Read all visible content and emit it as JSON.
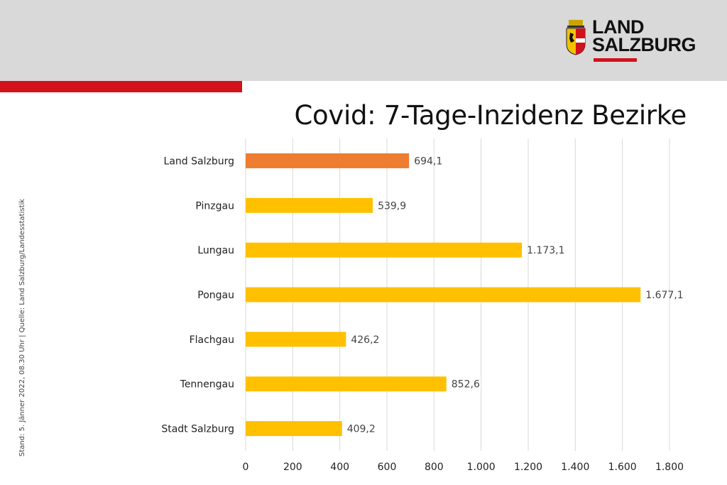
{
  "header": {
    "logo_line1": "LAND",
    "logo_line2": "SALZBURG",
    "brand_red": "#d2111b",
    "band_color": "#d9d9d9"
  },
  "side_note": "Stand: 5. Jänner 2022, 08.30 Uhr | Quelle: Land Salzburg/Landesstatistik",
  "chart_data": {
    "type": "bar",
    "orientation": "horizontal",
    "title": "Covid: 7-Tage-Inzidenz Bezirke",
    "categories": [
      "Land Salzburg",
      "Pinzgau",
      "Lungau",
      "Pongau",
      "Flachgau",
      "Tennengau",
      "Stadt Salzburg"
    ],
    "values": [
      694.1,
      539.9,
      1173.1,
      1677.1,
      426.2,
      852.6,
      409.2
    ],
    "value_labels": [
      "694,1",
      "539,9",
      "1.173,1",
      "1.677,1",
      "426,2",
      "852,6",
      "409,2"
    ],
    "colors": [
      "#ed7d31",
      "#ffc000",
      "#ffc000",
      "#ffc000",
      "#ffc000",
      "#ffc000",
      "#ffc000"
    ],
    "xlim": [
      0,
      1800
    ],
    "ticks": [
      0,
      200,
      400,
      600,
      800,
      1000,
      1200,
      1400,
      1600,
      1800
    ],
    "tick_labels": [
      "0",
      "200",
      "400",
      "600",
      "800",
      "1.000",
      "1.200",
      "1.400",
      "1.600",
      "1.800"
    ],
    "grid": true,
    "xlabel": "",
    "ylabel": ""
  }
}
